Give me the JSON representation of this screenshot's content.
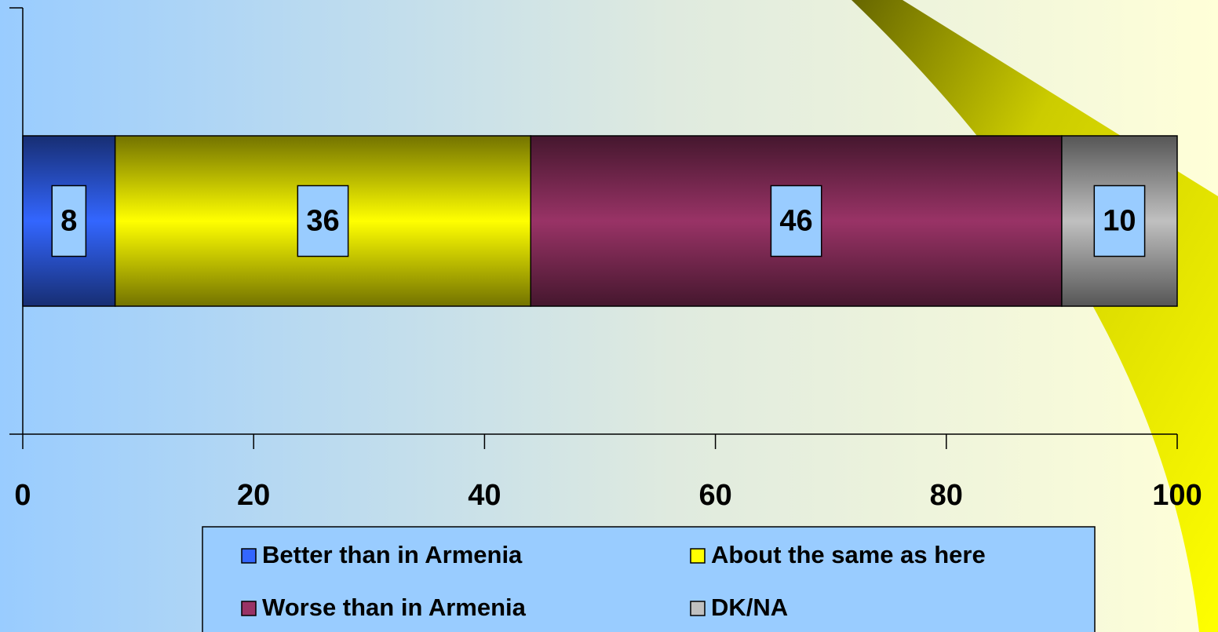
{
  "chart_data": {
    "type": "stacked-bar",
    "orientation": "horizontal",
    "categories": [
      null
    ],
    "series": [
      {
        "name": "Better than in Armenia",
        "color": "#3366ff",
        "values": [
          8
        ]
      },
      {
        "name": "About the same as here",
        "color": "#ffff00",
        "values": [
          36
        ]
      },
      {
        "name": "Worse than in Armenia",
        "color": "#993366",
        "values": [
          46
        ]
      },
      {
        "name": "DK/NA",
        "color": "#c0c0c0",
        "values": [
          10
        ]
      }
    ],
    "xlim": [
      0,
      100
    ],
    "xticks": [
      0,
      20,
      40,
      60,
      80,
      100
    ],
    "grid": false,
    "legend": "bottom"
  }
}
